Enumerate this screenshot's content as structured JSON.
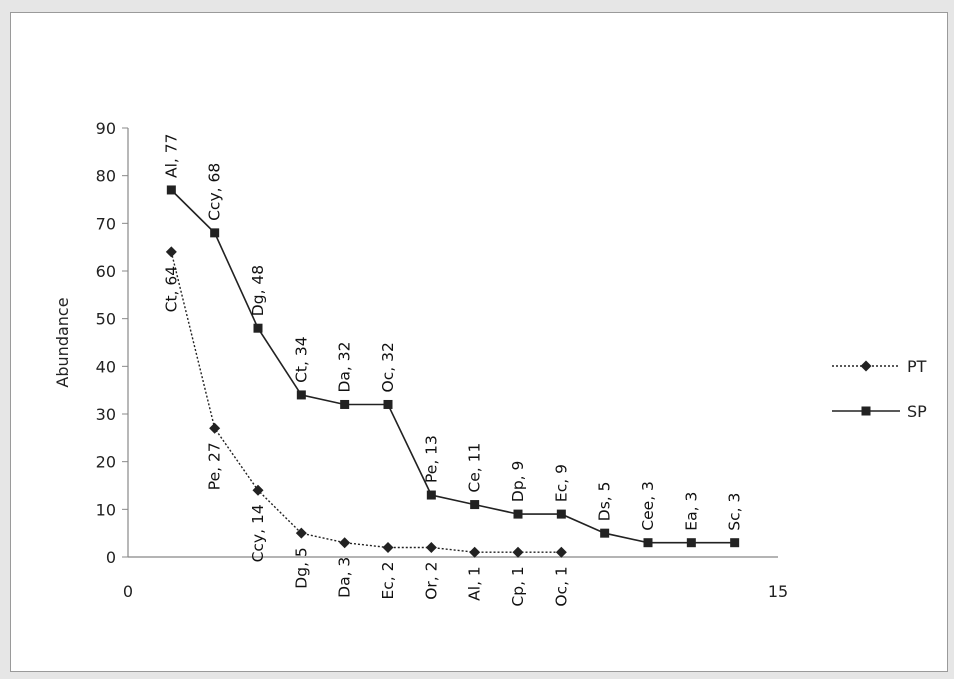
{
  "chart_data": {
    "type": "line",
    "title": "",
    "xlabel": "",
    "ylabel": "Abundance",
    "xlim": [
      0,
      15
    ],
    "ylim": [
      0,
      90
    ],
    "x_ticks": [
      0,
      15
    ],
    "y_ticks": [
      0,
      10,
      20,
      30,
      40,
      50,
      60,
      70,
      80,
      90
    ],
    "grid": false,
    "legend_position": "right",
    "series": [
      {
        "name": "PT",
        "line_style": "dotted",
        "marker": "diamond",
        "color": "#222222",
        "points": [
          {
            "x": 1,
            "y": 64,
            "label": "Ct, 64"
          },
          {
            "x": 2,
            "y": 27,
            "label": "Pe, 27"
          },
          {
            "x": 3,
            "y": 14,
            "label": "Ccy, 14"
          },
          {
            "x": 4,
            "y": 5,
            "label": "Dg, 5"
          },
          {
            "x": 5,
            "y": 3,
            "label": "Da, 3"
          },
          {
            "x": 6,
            "y": 2,
            "label": "Ec, 2"
          },
          {
            "x": 7,
            "y": 2,
            "label": "Or, 2"
          },
          {
            "x": 8,
            "y": 1,
            "label": "Al, 1"
          },
          {
            "x": 9,
            "y": 1,
            "label": "Cp, 1"
          },
          {
            "x": 10,
            "y": 1,
            "label": "Oc, 1"
          }
        ]
      },
      {
        "name": "SP",
        "line_style": "solid",
        "marker": "square",
        "color": "#222222",
        "points": [
          {
            "x": 1,
            "y": 77,
            "label": "Al, 77"
          },
          {
            "x": 2,
            "y": 68,
            "label": "Ccy, 68"
          },
          {
            "x": 3,
            "y": 48,
            "label": "Dg, 48"
          },
          {
            "x": 4,
            "y": 34,
            "label": "Ct, 34"
          },
          {
            "x": 5,
            "y": 32,
            "label": "Da, 32"
          },
          {
            "x": 6,
            "y": 32,
            "label": "Oc, 32"
          },
          {
            "x": 7,
            "y": 13,
            "label": "Pe, 13"
          },
          {
            "x": 8,
            "y": 11,
            "label": "Ce, 11"
          },
          {
            "x": 9,
            "y": 9,
            "label": "Dp, 9"
          },
          {
            "x": 10,
            "y": 9,
            "label": "Ec, 9"
          },
          {
            "x": 11,
            "y": 5,
            "label": "Ds, 5"
          },
          {
            "x": 12,
            "y": 3,
            "label": "Cee, 3"
          },
          {
            "x": 13,
            "y": 3,
            "label": "Ea, 3"
          },
          {
            "x": 14,
            "y": 3,
            "label": "Sc, 3"
          }
        ]
      }
    ]
  }
}
